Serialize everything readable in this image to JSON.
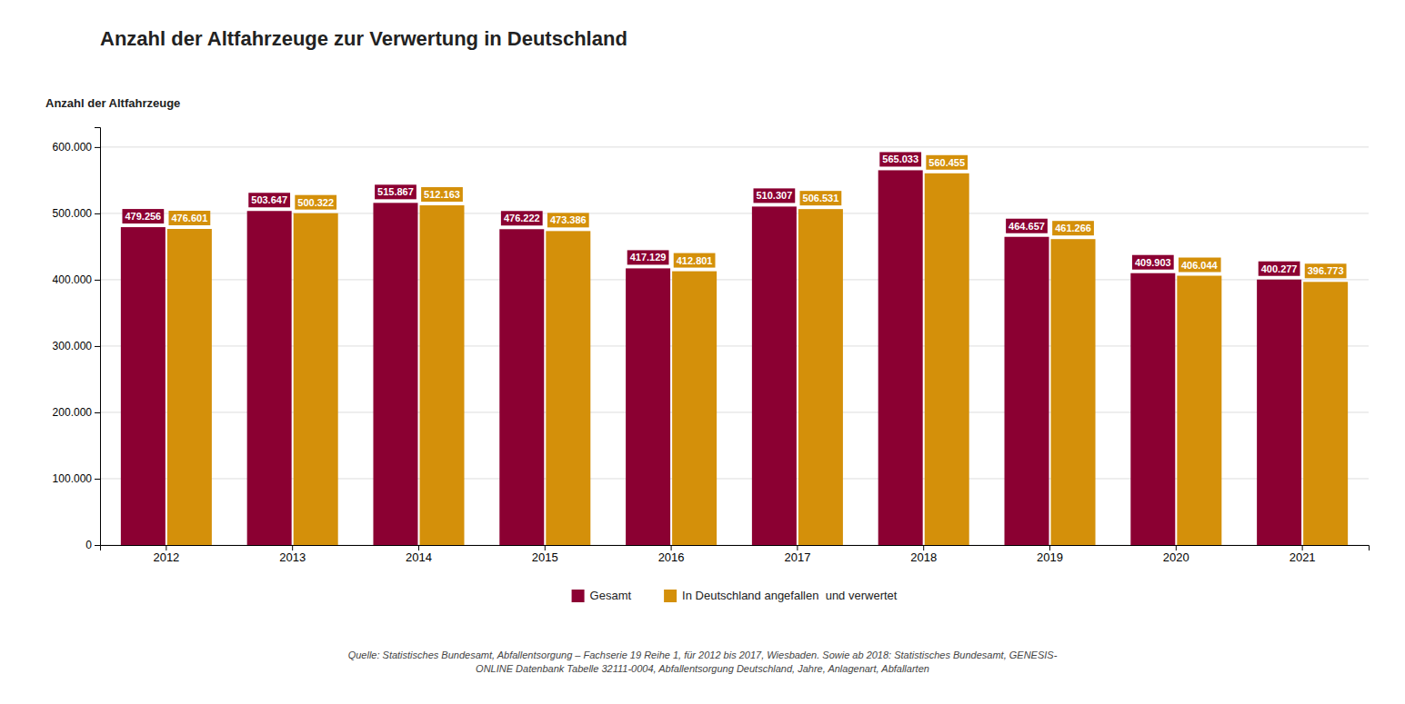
{
  "chart_data": {
    "type": "bar",
    "title": "Anzahl der Altfahrzeuge zur Verwertung in Deutschland",
    "ylabel": "Anzahl der Altfahrzeuge",
    "categories": [
      "2012",
      "2013",
      "2014",
      "2015",
      "2016",
      "2017",
      "2018",
      "2019",
      "2020",
      "2021"
    ],
    "series": [
      {
        "name": "Gesamt",
        "color": "#8B0032",
        "values": [
          479256,
          503647,
          515867,
          476222,
          417129,
          510307,
          565033,
          464657,
          409903,
          400277
        ],
        "value_labels": [
          "479.256",
          "503.647",
          "515.867",
          "476.222",
          "417.129",
          "510.307",
          "565.033",
          "464.657",
          "409.903",
          "400.277"
        ]
      },
      {
        "name": "In Deutschland angefallen  und verwertet",
        "color": "#D4900A",
        "values": [
          476601,
          500322,
          512163,
          473386,
          412801,
          506531,
          560455,
          461266,
          406044,
          396773
        ],
        "value_labels": [
          "476.601",
          "500.322",
          "512.163",
          "473.386",
          "412.801",
          "506.531",
          "560.455",
          "461.266",
          "406.044",
          "396.773"
        ]
      }
    ],
    "ylim": [
      0,
      630000
    ],
    "yticks": [
      0,
      {
        "value": 100000,
        "label": "100.000"
      },
      {
        "value": 200000,
        "label": "200.000"
      },
      {
        "value": 300000,
        "label": "300.000"
      },
      {
        "value": 400000,
        "label": "400.000"
      },
      {
        "value": 500000,
        "label": "500.000"
      },
      {
        "value": 600000,
        "label": "600.000"
      }
    ],
    "grid": true,
    "legend": "bottom",
    "data_labels": true,
    "annotations": [
      "Quelle: Statistisches Bundesamt, Abfallentsorgung – Fachserie 19 Reihe 1, für 2012 bis 2017, Wiesbaden. Sowie ab 2018: Statistisches Bundesamt, GENESIS-\nONLINE Datenbank Tabelle 32111-0004, Abfallentsorgung Deutschland, Jahre, Anlagenart, Abfallarten"
    ]
  }
}
